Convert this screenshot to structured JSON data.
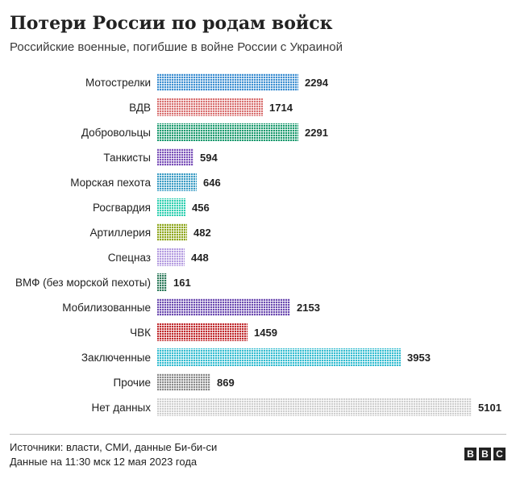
{
  "chart_data": {
    "type": "bar",
    "orientation": "horizontal",
    "title": "Потери России по родам войск",
    "subtitle": "Российские военные, погибшие в войне России с Украиной",
    "categories": [
      "Мотострелки",
      "ВДВ",
      "Добровольцы",
      "Танкисты",
      "Морская пехота",
      "Росгвардия",
      "Артиллерия",
      "Спецназ",
      "ВМФ (без морской пехоты)",
      "Мобилизованные",
      "ЧВК",
      "Заключенные",
      "Прочие",
      "Нет данных"
    ],
    "values": [
      2294,
      1714,
      2291,
      594,
      646,
      456,
      482,
      448,
      161,
      2153,
      1459,
      3953,
      869,
      5101
    ],
    "colors": [
      "#3d8fd1",
      "#d86f6f",
      "#1a9a6e",
      "#7a4fb8",
      "#3b9cc4",
      "#2fcfb0",
      "#8fa61c",
      "#b49be0",
      "#2c7a5a",
      "#6c4bb0",
      "#c0282b",
      "#33bcd0",
      "#8a8a8a",
      "#cfcfcf"
    ],
    "grid": false,
    "legend": "none"
  },
  "footer": {
    "sources": "Источники: власти, СМИ, данные Би-би-си",
    "date": "Данные на 11:30 мск 12 мая 2023 года"
  },
  "logo": {
    "letters": [
      "B",
      "B",
      "C"
    ]
  }
}
